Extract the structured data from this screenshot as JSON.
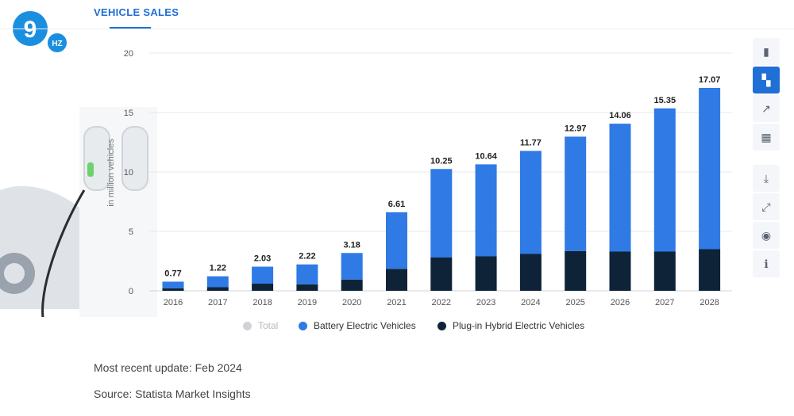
{
  "header": {
    "tab_label": "VEHICLE SALES"
  },
  "logo": {
    "text": "9",
    "badge": "HZ"
  },
  "toolbar": {
    "buttons": [
      {
        "name": "bar-chart-icon",
        "glyph": "▮",
        "active": false
      },
      {
        "name": "stacked-bar-icon",
        "glyph": "▚",
        "active": true
      },
      {
        "name": "trend-line-icon",
        "glyph": "↗",
        "active": false
      },
      {
        "name": "table-grid-icon",
        "glyph": "▦",
        "active": false
      },
      {
        "name": "download-icon",
        "glyph": "⤓",
        "active": false
      },
      {
        "name": "expand-icon",
        "glyph": "⤢",
        "active": false
      },
      {
        "name": "hide-icon",
        "glyph": "◉",
        "active": false
      },
      {
        "name": "info-icon",
        "glyph": "ℹ",
        "active": false
      }
    ]
  },
  "legend": {
    "total": "Total",
    "bev": "Battery Electric Vehicles",
    "phev": "Plug-in Hybrid Electric Vehicles"
  },
  "meta": {
    "update": "Most recent update: Feb 2024",
    "source": "Source: Statista Market Insights"
  },
  "colors": {
    "bev": "#2f7ae5",
    "phev": "#0f2338",
    "total": "#cfd3d8",
    "grid": "#e6e9ee"
  },
  "chart_data": {
    "type": "bar",
    "stacked": true,
    "title": "",
    "xlabel": "",
    "ylabel": "in million vehicles",
    "ylim": [
      0,
      20
    ],
    "yticks": [
      0,
      5,
      10,
      15,
      20
    ],
    "grid": true,
    "legend_position": "bottom",
    "categories": [
      "2016",
      "2017",
      "2018",
      "2019",
      "2020",
      "2021",
      "2022",
      "2023",
      "2024",
      "2025",
      "2026",
      "2027",
      "2028"
    ],
    "series": [
      {
        "name": "Plug-in Hybrid Electric Vehicles",
        "values": [
          0.2,
          0.3,
          0.6,
          0.55,
          0.95,
          1.85,
          2.8,
          2.9,
          3.1,
          3.35,
          3.3,
          3.3,
          3.5
        ]
      },
      {
        "name": "Battery Electric Vehicles",
        "values": [
          0.57,
          0.92,
          1.43,
          1.67,
          2.23,
          4.76,
          7.45,
          7.74,
          8.67,
          9.62,
          10.76,
          12.05,
          13.57
        ]
      }
    ],
    "totals": [
      0.77,
      1.22,
      2.03,
      2.22,
      3.18,
      6.61,
      10.25,
      10.64,
      11.77,
      12.97,
      14.06,
      15.35,
      17.07
    ],
    "total_labels": [
      "0.77",
      "1.22",
      "2.03",
      "2.22",
      "3.18",
      "6.61",
      "10.25",
      "10.64",
      "11.77",
      "12.97",
      "14.06",
      "15.35",
      "17.07"
    ]
  }
}
